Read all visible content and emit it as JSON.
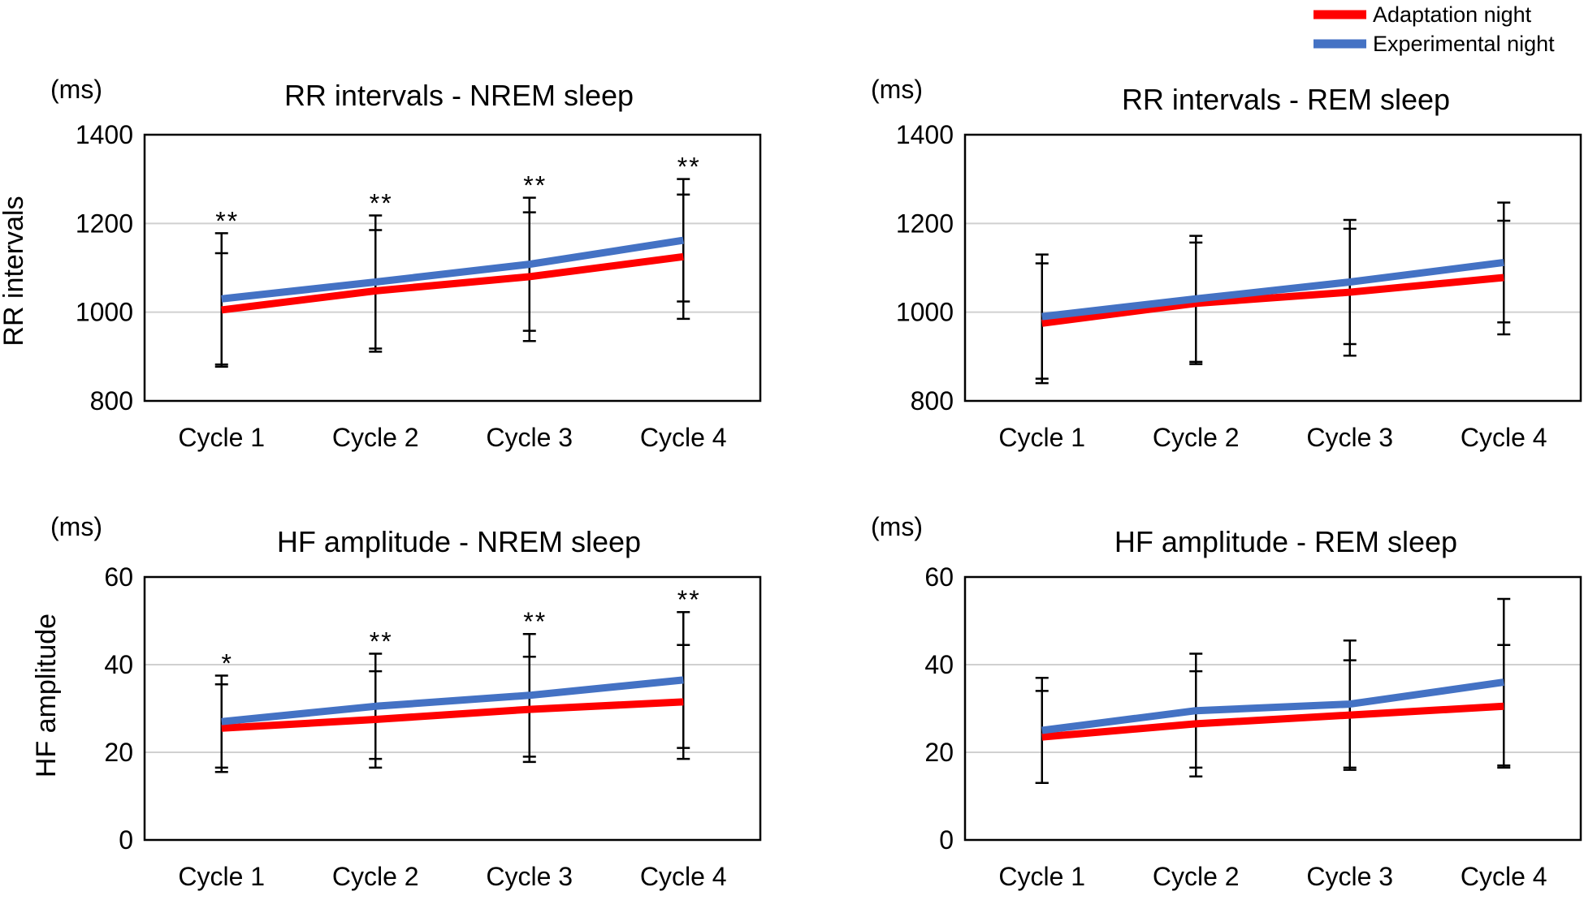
{
  "legend": {
    "items": [
      {
        "name": "Adaptation night",
        "color": "#ff0000"
      },
      {
        "name": "Experimental night",
        "color": "#4472c4"
      }
    ]
  },
  "chart_data": [
    {
      "type": "line",
      "title": "RR intervals - NREM sleep",
      "unit": "(ms)",
      "ylabel": "RR intervals",
      "xlabel": "",
      "categories": [
        "Cycle 1",
        "Cycle 2",
        "Cycle 3",
        "Cycle 4"
      ],
      "ylim": [
        800,
        1400
      ],
      "yticks": [
        800,
        1000,
        1200,
        1400
      ],
      "grid": true,
      "series": [
        {
          "name": "Adaptation night",
          "color": "#ff0000",
          "values": [
            1005,
            1048,
            1080,
            1125
          ],
          "errors": [
            128,
            137,
            145,
            140
          ]
        },
        {
          "name": "Experimental night",
          "color": "#4472c4",
          "values": [
            1030,
            1068,
            1108,
            1162
          ],
          "errors": [
            148,
            150,
            150,
            138
          ]
        }
      ],
      "annotations": [
        "**",
        "**",
        "**",
        "**"
      ]
    },
    {
      "type": "line",
      "title": "RR intervals - REM sleep",
      "unit": "(ms)",
      "ylabel": "",
      "xlabel": "",
      "categories": [
        "Cycle 1",
        "Cycle 2",
        "Cycle 3",
        "Cycle 4"
      ],
      "ylim": [
        800,
        1400
      ],
      "yticks": [
        800,
        1000,
        1200,
        1400
      ],
      "grid": true,
      "series": [
        {
          "name": "Adaptation night",
          "color": "#ff0000",
          "values": [
            975,
            1020,
            1045,
            1078
          ],
          "errors": [
            135,
            137,
            143,
            128
          ]
        },
        {
          "name": "Experimental night",
          "color": "#4472c4",
          "values": [
            990,
            1030,
            1068,
            1112
          ],
          "errors": [
            140,
            142,
            140,
            135
          ]
        }
      ],
      "annotations": [
        "",
        "",
        "",
        ""
      ]
    },
    {
      "type": "line",
      "title": "HF  amplitude - NREM sleep",
      "unit": "(ms)",
      "ylabel": "HF amplitude",
      "xlabel": "",
      "categories": [
        "Cycle 1",
        "Cycle 2",
        "Cycle 3",
        "Cycle 4"
      ],
      "ylim": [
        0,
        60
      ],
      "yticks": [
        0,
        20,
        40,
        60
      ],
      "grid": true,
      "series": [
        {
          "name": "Adaptation night",
          "color": "#ff0000",
          "values": [
            25.5,
            27.5,
            29.8,
            31.5
          ],
          "errors": [
            10,
            11,
            12,
            13
          ]
        },
        {
          "name": "Experimental night",
          "color": "#4472c4",
          "values": [
            27,
            30.5,
            33,
            36.5
          ],
          "errors": [
            10.5,
            12,
            14,
            15.5
          ]
        }
      ],
      "annotations": [
        "*",
        "**",
        "**",
        "**"
      ]
    },
    {
      "type": "line",
      "title": "HF amplitude - REM sleep",
      "unit": "(ms)",
      "ylabel": "",
      "xlabel": "",
      "categories": [
        "Cycle 1",
        "Cycle 2",
        "Cycle 3",
        "Cycle 4"
      ],
      "ylim": [
        0,
        60
      ],
      "yticks": [
        0,
        20,
        40,
        60
      ],
      "grid": true,
      "series": [
        {
          "name": "Adaptation night",
          "color": "#ff0000",
          "values": [
            23.5,
            26.5,
            28.5,
            30.5
          ],
          "errors": [
            10.5,
            12,
            12.5,
            14
          ]
        },
        {
          "name": "Experimental night",
          "color": "#4472c4",
          "values": [
            25,
            29.5,
            31,
            36
          ],
          "errors": [
            12,
            13,
            14.5,
            19
          ]
        }
      ],
      "annotations": [
        "",
        "",
        "",
        ""
      ]
    }
  ]
}
